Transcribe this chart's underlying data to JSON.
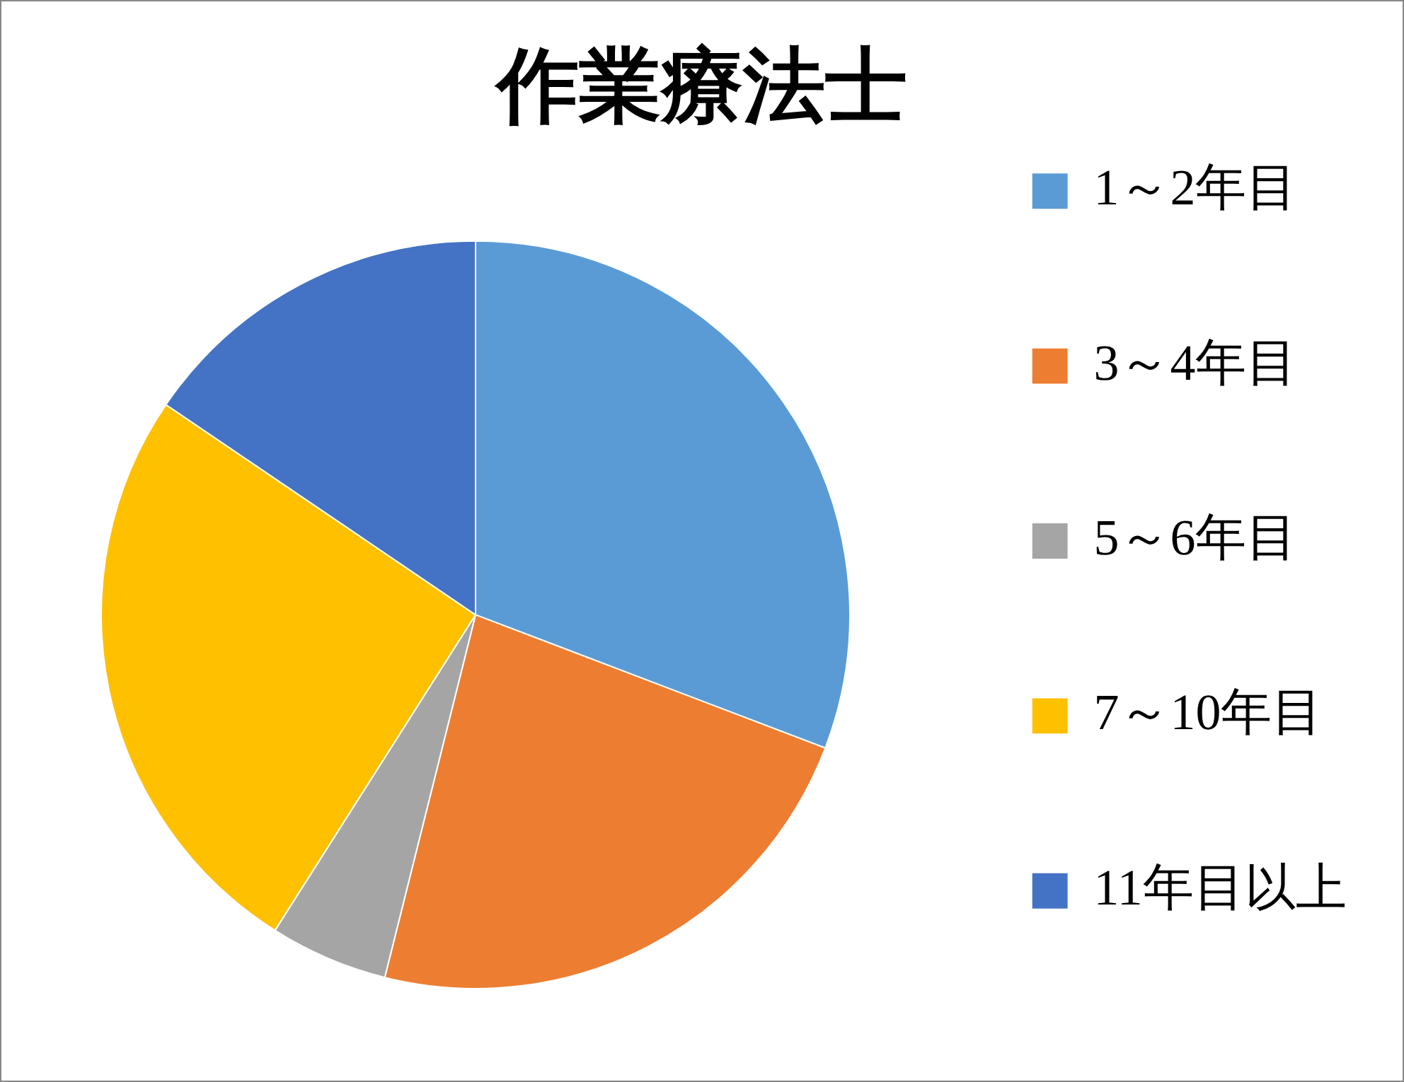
{
  "chart_data": {
    "type": "pie",
    "title": "作業療法士",
    "categories": [
      "1～2年目",
      "3～4年目",
      "5～6年目",
      "7～10年目",
      "11年目以上"
    ],
    "values": [
      30.8,
      23.1,
      5.1,
      25.5,
      15.5
    ],
    "colors": [
      "#5b9bd5",
      "#ed7d31",
      "#a5a5a5",
      "#ffc000",
      "#4472c4"
    ],
    "legend": "right"
  }
}
